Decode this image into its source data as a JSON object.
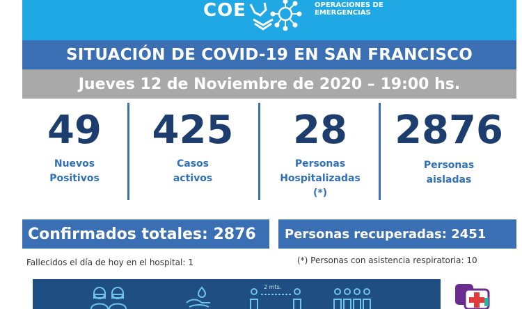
{
  "header": {
    "logo_acronym": "COE",
    "logo_line1": "OPERACIONES DE",
    "logo_line2": "EMERGENCIAS",
    "title": "SITUACIÓN DE COVID-19 EN SAN FRANCISCO",
    "date": "Jueves 12 de Noviembre de 2020 – 19:00 hs."
  },
  "stats": [
    {
      "value": "49",
      "label1": "Nuevos",
      "label2": "Positivos",
      "label3": ""
    },
    {
      "value": "425",
      "label1": "Casos",
      "label2": "activos",
      "label3": ""
    },
    {
      "value": "28",
      "label1": "Personas",
      "label2": "Hospitalizadas",
      "label3": "(*)"
    },
    {
      "value": "2876",
      "label1": "Personas",
      "label2": "aisladas",
      "label3": ""
    }
  ],
  "totals": {
    "confirmed_label": "Confirmados totales:",
    "confirmed_value": "2876",
    "recovered_label": "Personas recuperadas:",
    "recovered_value": "2451"
  },
  "notes": {
    "deaths": "Fallecidos el día de hoy en el hospital:  1",
    "respiratory": "(*) Personas con asistencia respiratoria: 10"
  },
  "footer": {
    "distance_label": "2 mts."
  },
  "colors": {
    "top_band": "#1fa8e3",
    "title_band": "#3a6fb3",
    "date_band": "#a9a9a9",
    "stat_number": "#1c3d6e",
    "stat_label": "#2f70b8",
    "footer_band": "#1f4f82"
  }
}
